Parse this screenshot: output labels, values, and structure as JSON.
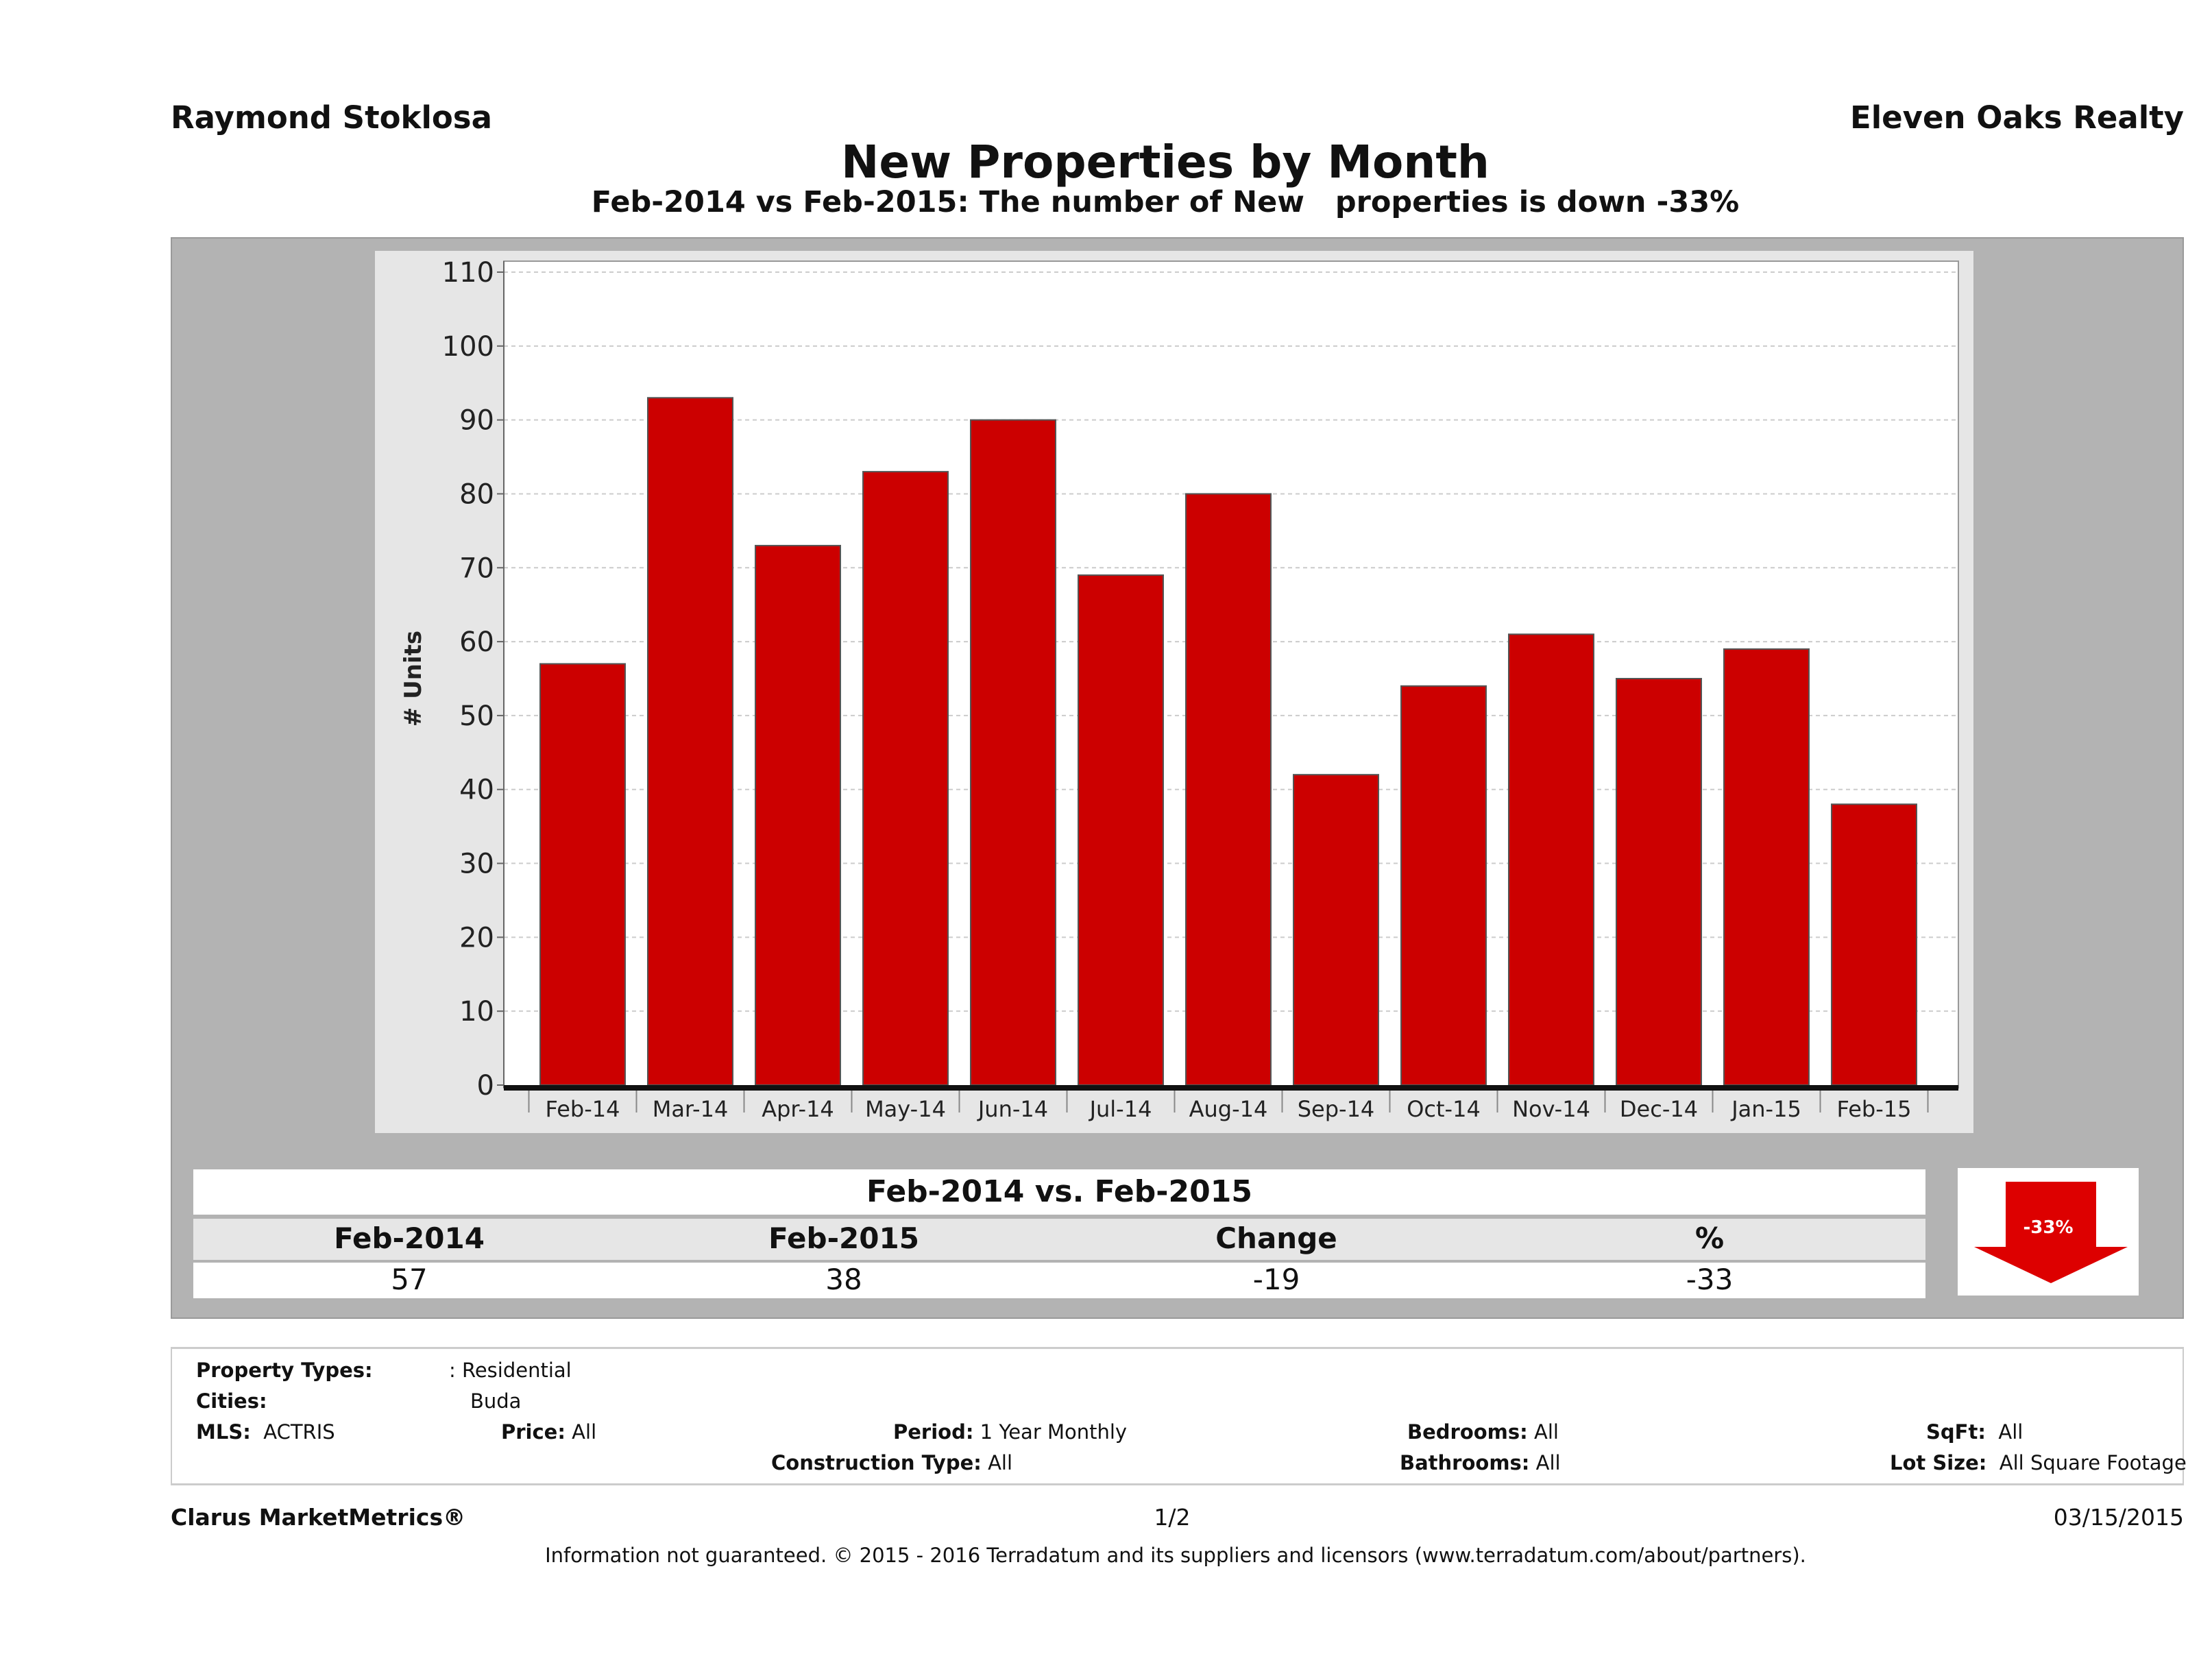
{
  "header": {
    "agent": "Raymond Stoklosa",
    "brokerage": "Eleven Oaks Realty"
  },
  "chart_data": {
    "type": "bar",
    "title": "New Properties by Month",
    "subtitle": "Feb-2014 vs Feb-2015: The number of New   properties is down -33%",
    "ylabel": "# Units",
    "xlabel": "",
    "ylim": [
      0,
      110
    ],
    "yticks": [
      0,
      10,
      20,
      30,
      40,
      50,
      60,
      70,
      80,
      90,
      100,
      110
    ],
    "categories": [
      "Feb-14",
      "Mar-14",
      "Apr-14",
      "May-14",
      "Jun-14",
      "Jul-14",
      "Aug-14",
      "Sep-14",
      "Oct-14",
      "Nov-14",
      "Dec-14",
      "Jan-15",
      "Feb-15"
    ],
    "values": [
      57,
      93,
      73,
      83,
      90,
      69,
      80,
      42,
      54,
      61,
      55,
      59,
      38
    ],
    "bar_color": "#cc0000",
    "grid": true
  },
  "comparison": {
    "title": "Feb-2014 vs. Feb-2015",
    "headers": [
      "Feb-2014",
      "Feb-2015",
      "Change",
      "%"
    ],
    "values": [
      "57",
      "38",
      "-19",
      "-33"
    ],
    "badge": "-33%"
  },
  "filters": {
    "property_types_label": "Property Types:",
    "property_types": ": Residential",
    "cities_label": "Cities:",
    "cities": "Buda",
    "mls_label": "MLS:",
    "mls": "ACTRIS",
    "price_label": "Price:",
    "price": "All",
    "period_label": "Period:",
    "period": "1 Year Monthly",
    "bedrooms_label": "Bedrooms:",
    "bedrooms": "All",
    "sqft_label": "SqFt:",
    "sqft": "All",
    "construction_label": "Construction Type:",
    "construction": "All",
    "bathrooms_label": "Bathrooms:",
    "bathrooms": "All",
    "lot_label": "Lot Size:",
    "lot": "All Square Footage"
  },
  "footer": {
    "brand": "Clarus MarketMetrics®",
    "page": "1/2",
    "date": "03/15/2015",
    "disclaimer": "Information not guaranteed. © 2015 - 2016 Terradatum and its suppliers and licensors (www.terradatum.com/about/partners)."
  }
}
